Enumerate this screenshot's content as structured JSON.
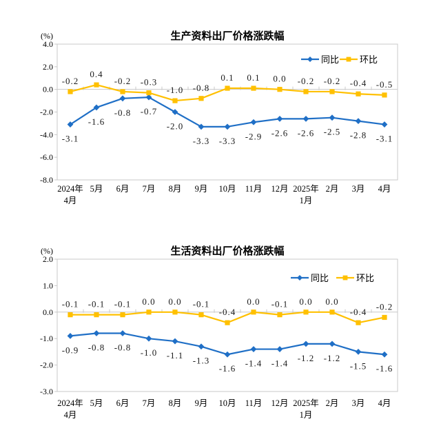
{
  "page": {
    "background": "#ffffff"
  },
  "colors": {
    "tongbi_blue": "#1f6fc6",
    "huanbi_yellow": "#ffc000",
    "axis_gray": "#c8c8c8",
    "text_black": "#000000"
  },
  "chart_data": [
    {
      "type": "line",
      "title": "生产资料出厂价格涨跌幅",
      "unit": "(%)",
      "ylim": [
        -8.0,
        4.0
      ],
      "ytick_step": 2.0,
      "ytick_labels": [
        "4.0",
        "2.0",
        "0.0",
        "-2.0",
        "-4.0",
        "-6.0",
        "-8.0"
      ],
      "grid": false,
      "legend_position": "top-right-inside",
      "categories": [
        [
          "2024年",
          "4月"
        ],
        [
          "5月"
        ],
        [
          "6月"
        ],
        [
          "7月"
        ],
        [
          "8月"
        ],
        [
          "9月"
        ],
        [
          "10月"
        ],
        [
          "11月"
        ],
        [
          "12月"
        ],
        [
          "2025年",
          "1月"
        ],
        [
          "2月"
        ],
        [
          "3月"
        ],
        [
          "4月"
        ]
      ],
      "series": [
        {
          "name": "同比",
          "color": "#1f6fc6",
          "marker": "diamond",
          "label_side": "below",
          "values": [
            -3.1,
            -1.6,
            -0.8,
            -0.7,
            -2.0,
            -3.3,
            -3.3,
            -2.9,
            -2.6,
            -2.6,
            -2.5,
            -2.8,
            -3.1
          ]
        },
        {
          "name": "环比",
          "color": "#ffc000",
          "marker": "square",
          "label_side": "above",
          "values": [
            -0.2,
            0.4,
            -0.2,
            -0.3,
            -1.0,
            -0.8,
            0.1,
            0.1,
            0.0,
            -0.2,
            -0.2,
            -0.4,
            -0.5
          ]
        }
      ]
    },
    {
      "type": "line",
      "title": "生活资料出厂价格涨跌幅",
      "unit": "(%)",
      "ylim": [
        -3.0,
        2.0
      ],
      "ytick_step": 1.0,
      "ytick_labels": [
        "2.0",
        "1.0",
        "0.0",
        "-1.0",
        "-2.0",
        "-3.0"
      ],
      "grid": false,
      "legend_position": "top-right-inside",
      "categories": [
        [
          "2024年",
          "4月"
        ],
        [
          "5月"
        ],
        [
          "6月"
        ],
        [
          "7月"
        ],
        [
          "8月"
        ],
        [
          "9月"
        ],
        [
          "10月"
        ],
        [
          "11月"
        ],
        [
          "12月"
        ],
        [
          "2025年",
          "1月"
        ],
        [
          "2月"
        ],
        [
          "3月"
        ],
        [
          "4月"
        ]
      ],
      "series": [
        {
          "name": "同比",
          "color": "#1f6fc6",
          "marker": "diamond",
          "label_side": "below",
          "values": [
            -0.9,
            -0.8,
            -0.8,
            -1.0,
            -1.1,
            -1.3,
            -1.6,
            -1.4,
            -1.4,
            -1.2,
            -1.2,
            -1.5,
            -1.6
          ]
        },
        {
          "name": "环比",
          "color": "#ffc000",
          "marker": "square",
          "label_side": "above",
          "values": [
            -0.1,
            -0.1,
            -0.1,
            0.0,
            0.0,
            -0.1,
            -0.4,
            0.0,
            -0.1,
            0.0,
            0.0,
            -0.4,
            -0.2
          ]
        }
      ]
    }
  ]
}
